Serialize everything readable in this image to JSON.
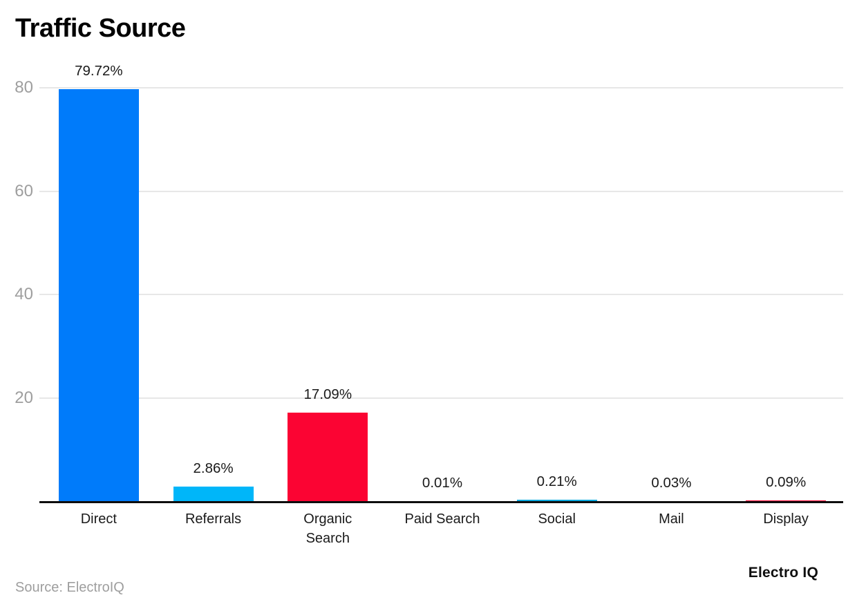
{
  "header": {
    "title": "Traffic Source"
  },
  "footer": {
    "source_text": "Source: ElectroIQ",
    "brand_text": "Electro IQ"
  },
  "chart_data": {
    "type": "bar",
    "title": "Traffic Source",
    "categories": [
      "Direct",
      "Referrals",
      "Organic Search",
      "Paid Search",
      "Social",
      "Mail",
      "Display"
    ],
    "values": [
      79.72,
      2.86,
      17.09,
      0.01,
      0.21,
      0.03,
      0.09
    ],
    "value_labels": [
      "79.72%",
      "2.86%",
      "17.09%",
      "0.01%",
      "0.21%",
      "0.03%",
      "0.09%"
    ],
    "bar_colors": [
      "#007bfa",
      "#00b6f9",
      "#fb0433",
      "#007bfa",
      "#00a9e0",
      "#00b6f9",
      "#fb0433"
    ],
    "xlabel": "",
    "ylabel": "",
    "ylim": [
      0,
      80
    ],
    "yticks": [
      20,
      40,
      60,
      80
    ],
    "grid": true,
    "legend": "none",
    "colors": {
      "grid_color": "#e7e7e7",
      "axis_color": "#0d0d0d",
      "tick_color": "#9e9e9e",
      "text_color": "#1a1a1a",
      "background": "#ffffff"
    }
  }
}
